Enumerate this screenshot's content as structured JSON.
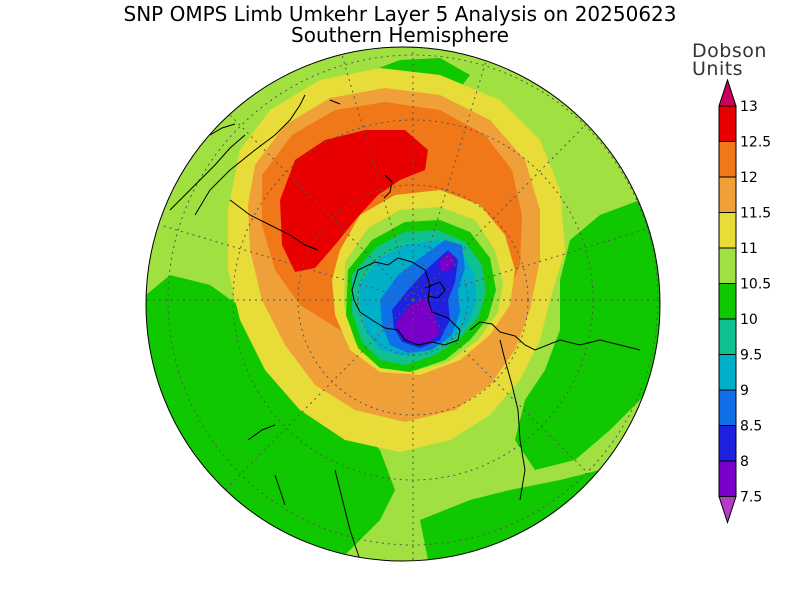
{
  "title": "SNP OMPS Limb Umkehr Layer 5 Analysis on 20250623",
  "subtitle": "Southern Hemisphere",
  "units": {
    "line1": "Dobson",
    "line2": "Units"
  },
  "colorbar": {
    "levels": [
      "13",
      "12.5",
      "12",
      "11.5",
      "11",
      "10.5",
      "10",
      "9.5",
      "9",
      "8.5",
      "8",
      "7.5"
    ],
    "colors": [
      "#c8005a",
      "#e80000",
      "#f07818",
      "#f0a038",
      "#e8dc38",
      "#a0e040",
      "#10c800",
      "#10c090",
      "#00b0c8",
      "#1070e8",
      "#2020e0",
      "#7800c8",
      "#b43cc8"
    ]
  },
  "map": {
    "projection": "south-polar-stereographic",
    "colors": {
      "green": "#10c800",
      "lightgreen": "#a0e040",
      "yellow": "#e8dc38",
      "lightorange": "#f0a038",
      "orange": "#f07818",
      "red": "#e80000",
      "teal": "#10c090",
      "cyan": "#00b0c8",
      "blue": "#1070e8",
      "darkblue": "#2020e0",
      "purple": "#7800c8"
    }
  }
}
